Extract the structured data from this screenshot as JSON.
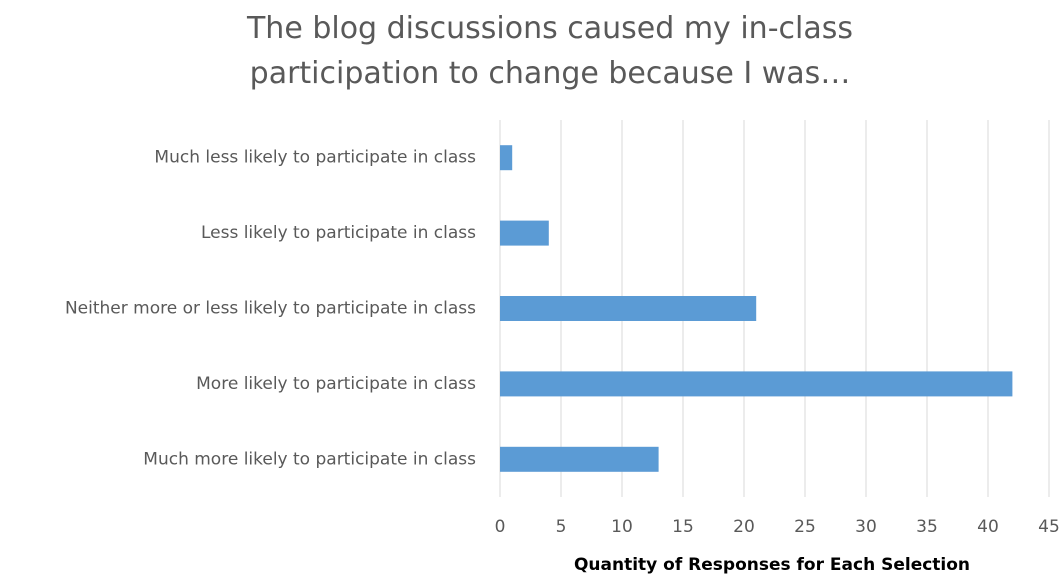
{
  "chart_data": {
    "type": "barh",
    "title": "The blog discussions caused my in-class participation to change because I was…",
    "categories": [
      "Much less likely to participate in class",
      "Less likely to participate in class",
      "Neither more or less likely to participate in class",
      "More likely to participate in class",
      "Much more likely to participate in class"
    ],
    "values": [
      1,
      4,
      21,
      42,
      13
    ],
    "color": "#5b9bd5",
    "xlabel": "Quantity of Responses for Each Selection",
    "xlim": [
      0,
      45
    ],
    "xticks": [
      0,
      5,
      10,
      15,
      20,
      25,
      30,
      35,
      40,
      45
    ],
    "grid": true
  }
}
